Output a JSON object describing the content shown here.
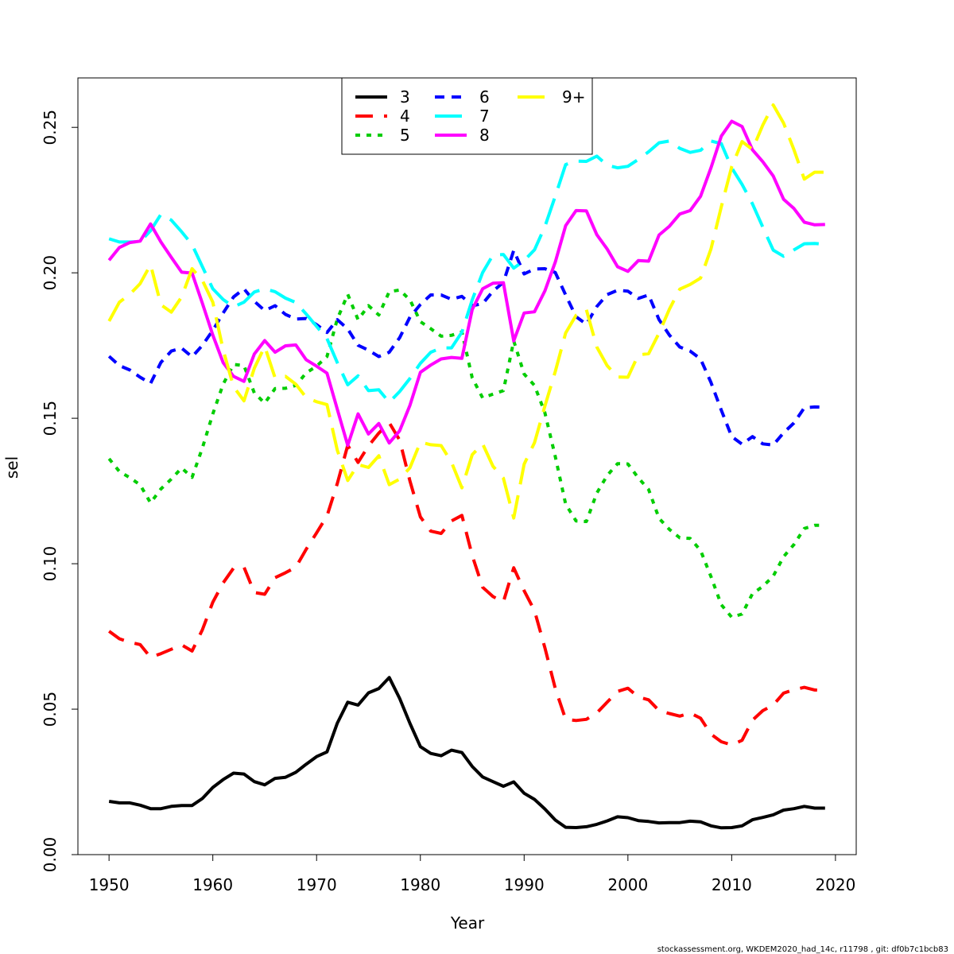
{
  "footnote": "stockassessment.org, WKDEM2020_had_14c, r11798 , git: df0b7c1bcb83",
  "chart_data": {
    "type": "line",
    "xlabel": "Year",
    "ylabel": "sel",
    "xlim": [
      1947,
      2022
    ],
    "ylim": [
      0,
      0.267
    ],
    "xticks": [
      1950,
      1960,
      1970,
      1980,
      1990,
      2000,
      2010,
      2020
    ],
    "yticks": [
      0.0,
      0.05,
      0.1,
      0.15,
      0.2,
      0.25
    ],
    "ytick_labels": [
      "0.00",
      "0.05",
      "0.10",
      "0.15",
      "0.20",
      "0.25"
    ],
    "legend_position": "top-center",
    "x": [
      1950,
      1951,
      1952,
      1953,
      1954,
      1955,
      1956,
      1957,
      1958,
      1959,
      1960,
      1961,
      1962,
      1963,
      1964,
      1965,
      1966,
      1967,
      1968,
      1969,
      1970,
      1971,
      1972,
      1973,
      1974,
      1975,
      1976,
      1977,
      1978,
      1979,
      1980,
      1981,
      1982,
      1983,
      1984,
      1985,
      1986,
      1987,
      1988,
      1989,
      1990,
      1991,
      1992,
      1993,
      1994,
      1995,
      1996,
      1997,
      1998,
      1999,
      2000,
      2001,
      2002,
      2003,
      2004,
      2005,
      2006,
      2007,
      2008,
      2009,
      2010,
      2011,
      2012,
      2013,
      2014,
      2015,
      2016,
      2017,
      2018,
      2019
    ],
    "series": [
      {
        "name": "3",
        "color": "#000000",
        "dash": "solid",
        "values": [
          0.0183,
          0.0178,
          0.0178,
          0.017,
          0.0158,
          0.0158,
          0.0166,
          0.0169,
          0.0169,
          0.0193,
          0.0231,
          0.0258,
          0.028,
          0.0277,
          0.0251,
          0.024,
          0.0262,
          0.0266,
          0.0283,
          0.0311,
          0.0337,
          0.0353,
          0.0452,
          0.0524,
          0.0514,
          0.0556,
          0.0571,
          0.0609,
          0.0537,
          0.0451,
          0.0371,
          0.0348,
          0.034,
          0.0359,
          0.0351,
          0.0303,
          0.0267,
          0.0251,
          0.0235,
          0.025,
          0.0211,
          0.019,
          0.0157,
          0.0119,
          0.0094,
          0.0093,
          0.0096,
          0.0104,
          0.0116,
          0.013,
          0.0127,
          0.0117,
          0.0114,
          0.0109,
          0.011,
          0.011,
          0.0115,
          0.0113,
          0.0099,
          0.0092,
          0.0093,
          0.0099,
          0.012,
          0.0128,
          0.0137,
          0.0153,
          0.0158,
          0.0166,
          0.016,
          0.016
        ]
      },
      {
        "name": "4",
        "color": "#ff0000",
        "dash": "dashed",
        "values": [
          0.0768,
          0.0742,
          0.073,
          0.0722,
          0.0678,
          0.0691,
          0.0706,
          0.0721,
          0.07,
          0.0773,
          0.0868,
          0.0934,
          0.0985,
          0.0988,
          0.0901,
          0.0895,
          0.0952,
          0.0969,
          0.0988,
          0.105,
          0.1106,
          0.1164,
          0.1276,
          0.1407,
          0.1348,
          0.1405,
          0.1449,
          0.1485,
          0.1425,
          0.1284,
          0.1161,
          0.1112,
          0.1104,
          0.1147,
          0.1166,
          0.1028,
          0.0919,
          0.0887,
          0.0869,
          0.0986,
          0.0907,
          0.0839,
          0.0711,
          0.0571,
          0.0465,
          0.0461,
          0.0465,
          0.0487,
          0.0524,
          0.0561,
          0.0572,
          0.0542,
          0.0532,
          0.0495,
          0.0485,
          0.0476,
          0.0487,
          0.0469,
          0.0414,
          0.0388,
          0.0377,
          0.0393,
          0.0462,
          0.0495,
          0.0514,
          0.0555,
          0.0567,
          0.0575,
          0.0566,
          0.0564
        ]
      },
      {
        "name": "5",
        "color": "#00cd00",
        "dash": "dotted",
        "values": [
          0.1361,
          0.1317,
          0.1296,
          0.1271,
          0.1209,
          0.1257,
          0.1291,
          0.1329,
          0.1297,
          0.1398,
          0.1515,
          0.1617,
          0.1685,
          0.1681,
          0.1587,
          0.1552,
          0.1602,
          0.1603,
          0.1613,
          0.1656,
          0.1679,
          0.1712,
          0.1841,
          0.1926,
          0.1839,
          0.1887,
          0.1855,
          0.1935,
          0.1941,
          0.1907,
          0.1832,
          0.1808,
          0.1782,
          0.1785,
          0.1797,
          0.1639,
          0.157,
          0.1583,
          0.1595,
          0.1766,
          0.1652,
          0.1613,
          0.1519,
          0.1368,
          0.1205,
          0.1147,
          0.1145,
          0.1243,
          0.1303,
          0.1344,
          0.1343,
          0.1295,
          0.1255,
          0.1156,
          0.1118,
          0.1089,
          0.1087,
          0.1046,
          0.0956,
          0.0859,
          0.0816,
          0.0827,
          0.0897,
          0.0922,
          0.0957,
          0.1024,
          0.1066,
          0.1121,
          0.1132,
          0.1132
        ]
      },
      {
        "name": "6",
        "color": "#0000ff",
        "dash": "shortdash",
        "values": [
          0.1713,
          0.1681,
          0.1666,
          0.1641,
          0.162,
          0.1692,
          0.1731,
          0.1741,
          0.1711,
          0.1751,
          0.1802,
          0.1862,
          0.1917,
          0.1945,
          0.1902,
          0.187,
          0.1887,
          0.1857,
          0.1841,
          0.1843,
          0.1822,
          0.1795,
          0.1839,
          0.1807,
          0.1751,
          0.1734,
          0.1712,
          0.1727,
          0.1777,
          0.1848,
          0.1891,
          0.1924,
          0.1924,
          0.1909,
          0.1919,
          0.1887,
          0.1894,
          0.1937,
          0.1967,
          0.2077,
          0.1996,
          0.2013,
          0.2014,
          0.2001,
          0.1924,
          0.1849,
          0.1823,
          0.1884,
          0.1925,
          0.194,
          0.1937,
          0.1912,
          0.1924,
          0.1839,
          0.1786,
          0.1745,
          0.1731,
          0.1704,
          0.1623,
          0.1528,
          0.1437,
          0.1411,
          0.1437,
          0.1412,
          0.1408,
          0.145,
          0.1484,
          0.1536,
          0.1539,
          0.1538
        ]
      },
      {
        "name": "7",
        "color": "#00ffff",
        "dash": "longdash",
        "values": [
          0.2117,
          0.2106,
          0.2106,
          0.2107,
          0.2145,
          0.2201,
          0.2181,
          0.2141,
          0.2097,
          0.2021,
          0.1945,
          0.1908,
          0.1883,
          0.1899,
          0.1934,
          0.1945,
          0.1935,
          0.1913,
          0.1898,
          0.1858,
          0.1816,
          0.1774,
          0.1691,
          0.1615,
          0.1646,
          0.1595,
          0.1598,
          0.1555,
          0.1592,
          0.1637,
          0.1689,
          0.1727,
          0.1742,
          0.1742,
          0.1796,
          0.1907,
          0.2001,
          0.2061,
          0.2063,
          0.2016,
          0.2042,
          0.2079,
          0.2159,
          0.2264,
          0.2372,
          0.2384,
          0.2383,
          0.2401,
          0.237,
          0.2361,
          0.2366,
          0.239,
          0.2416,
          0.2447,
          0.2453,
          0.2428,
          0.2414,
          0.2421,
          0.2453,
          0.2444,
          0.2361,
          0.2304,
          0.2237,
          0.2157,
          0.2078,
          0.2057,
          0.2079,
          0.21,
          0.2101,
          0.2098
        ]
      },
      {
        "name": "8",
        "color": "#ff00ff",
        "dash": "solid",
        "values": [
          0.2043,
          0.2087,
          0.2104,
          0.2109,
          0.2168,
          0.2106,
          0.2053,
          0.2002,
          0.1999,
          0.1895,
          0.1786,
          0.1691,
          0.1644,
          0.1627,
          0.1721,
          0.1767,
          0.1727,
          0.1749,
          0.1752,
          0.1701,
          0.1679,
          0.1655,
          0.1531,
          0.1407,
          0.1515,
          0.1446,
          0.1482,
          0.1415,
          0.1457,
          0.1545,
          0.1658,
          0.1683,
          0.1704,
          0.1709,
          0.1706,
          0.1874,
          0.1945,
          0.1964,
          0.1966,
          0.1766,
          0.1862,
          0.1866,
          0.1938,
          0.2037,
          0.2162,
          0.2214,
          0.2213,
          0.2131,
          0.2082,
          0.2021,
          0.2005,
          0.2042,
          0.204,
          0.213,
          0.216,
          0.2202,
          0.2214,
          0.2263,
          0.2361,
          0.247,
          0.2521,
          0.2503,
          0.2423,
          0.2382,
          0.2333,
          0.2253,
          0.2221,
          0.2174,
          0.2165,
          0.2166
        ]
      },
      {
        "name": "9+",
        "color": "#ffff00",
        "dash": "longdash",
        "values": [
          0.1834,
          0.1899,
          0.1926,
          0.1963,
          0.2028,
          0.189,
          0.1865,
          0.1917,
          0.2014,
          0.1974,
          0.1899,
          0.1735,
          0.1608,
          0.156,
          0.1672,
          0.1747,
          0.1639,
          0.1644,
          0.1617,
          0.1571,
          0.1557,
          0.1547,
          0.139,
          0.1286,
          0.1341,
          0.1331,
          0.1371,
          0.1272,
          0.1291,
          0.133,
          0.1418,
          0.1409,
          0.1406,
          0.1349,
          0.1261,
          0.1375,
          0.1412,
          0.1335,
          0.1294,
          0.1157,
          0.1342,
          0.1416,
          0.1542,
          0.1661,
          0.1793,
          0.1854,
          0.1873,
          0.1745,
          0.1681,
          0.1642,
          0.1641,
          0.1718,
          0.1722,
          0.1793,
          0.1875,
          0.1944,
          0.196,
          0.1982,
          0.2082,
          0.2227,
          0.2365,
          0.2451,
          0.2424,
          0.2508,
          0.2577,
          0.2515,
          0.2423,
          0.2322,
          0.2346,
          0.2346
        ]
      }
    ]
  }
}
